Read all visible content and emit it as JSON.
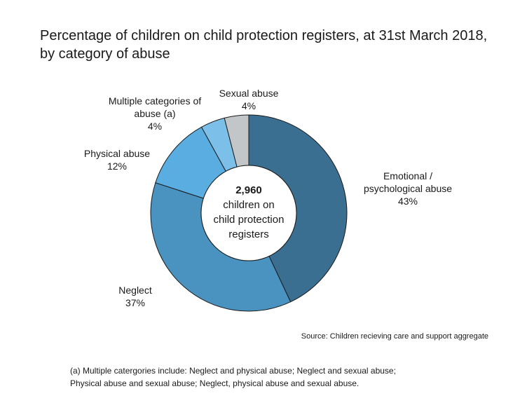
{
  "chart_data": {
    "type": "pie",
    "title": "Percentage of children on child protection registers, at 31st March 2018, by category of abuse",
    "center_label": {
      "total": "2,960",
      "lines": [
        "children on",
        "child protection",
        "registers"
      ]
    },
    "slices": [
      {
        "name": "Emotional / psychological abuse",
        "label_lines": [
          "Emotional /",
          "psychological abuse",
          "43%"
        ],
        "value": 43,
        "color": "#3a6f91"
      },
      {
        "name": "Neglect",
        "label_lines": [
          "Neglect",
          "37%"
        ],
        "value": 37,
        "color": "#4a92c0"
      },
      {
        "name": "Physical abuse",
        "label_lines": [
          "Physical abuse",
          "12%"
        ],
        "value": 12,
        "color": "#5aade0"
      },
      {
        "name": "Multiple categories of abuse (a)",
        "label_lines": [
          "Multiple categories of",
          "abuse (a)",
          "4%"
        ],
        "value": 4,
        "color": "#7cc0e9"
      },
      {
        "name": "Sexual abuse",
        "label_lines": [
          "Sexual abuse",
          "4%"
        ],
        "value": 4,
        "color": "#c3c6c8"
      }
    ]
  },
  "source": "Source: Children recieving care and support aggregate",
  "footnote": {
    "line1": "(a) Multiple catergories include: Neglect and physical abuse; Neglect and sexual abuse;",
    "line2": "Physical abuse and sexual abuse; Neglect, physical abuse and sexual abuse."
  }
}
